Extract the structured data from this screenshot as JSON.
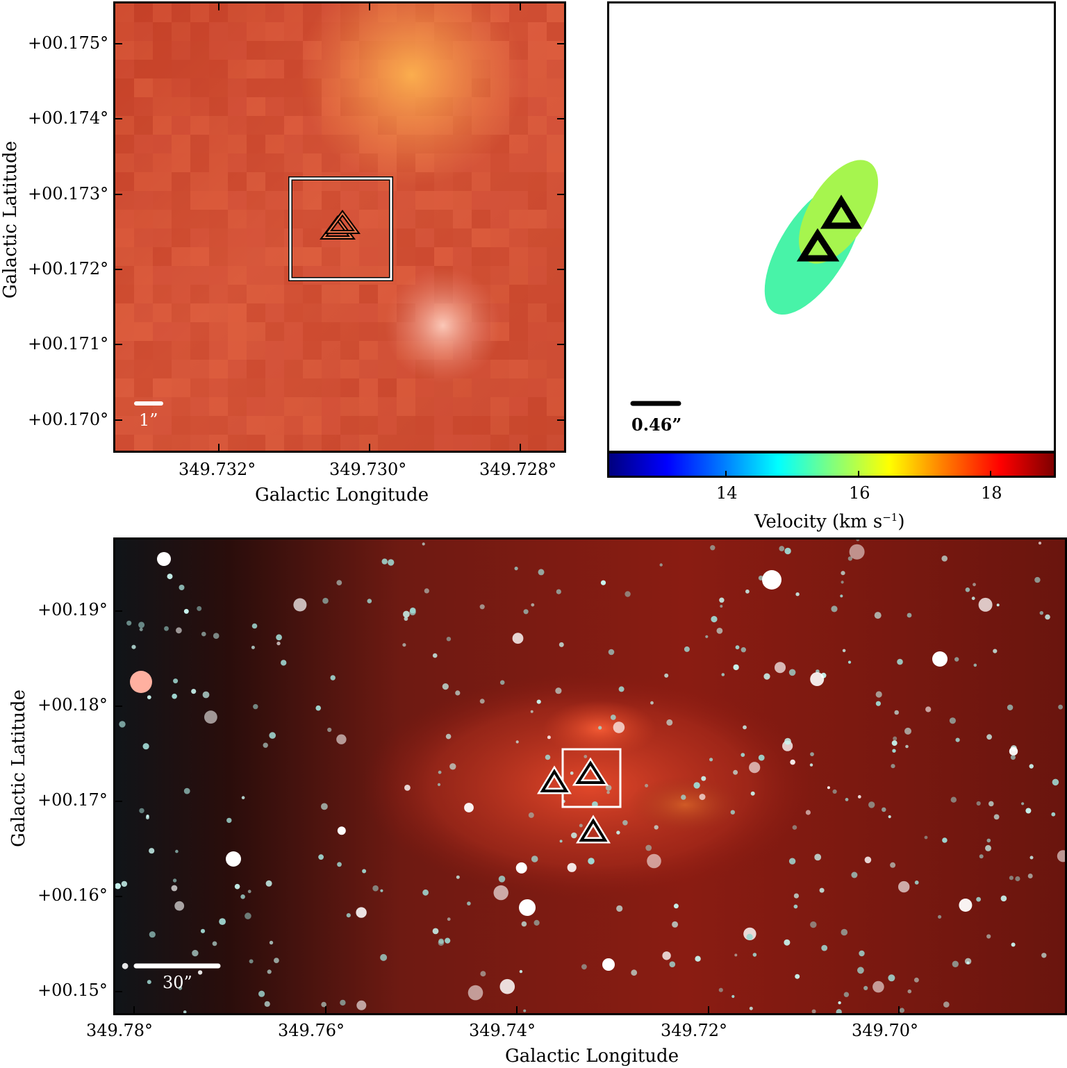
{
  "panels": {
    "top_left": {
      "y_ticks": [
        "+00.175°",
        "+00.174°",
        "+00.173°",
        "+00.172°",
        "+00.171°",
        "+00.170°"
      ],
      "x_ticks": [
        "349.732°",
        "349.730°",
        "349.728°"
      ],
      "xlabel": "Galactic Longitude",
      "ylabel": "Galactic Latitude",
      "scale_bar": "1”",
      "colors": {
        "base": "#d9583c",
        "highlight": "#f6a24a",
        "box": "#ffffff"
      }
    },
    "top_right": {
      "scale_bar": "0.46”",
      "colorbar": {
        "ticks": [
          "14",
          "16",
          "18"
        ],
        "label": "Velocity (km s",
        "label_sup": "−1",
        "label_end": ")",
        "range": [
          12.4,
          19.0
        ]
      },
      "ellipses": [
        {
          "velocity": 15.0,
          "color": "#48f3a8"
        },
        {
          "velocity": 15.7,
          "color": "#a6f54e"
        }
      ]
    },
    "bottom": {
      "y_ticks": [
        "+00.19°",
        "+00.18°",
        "+00.17°",
        "+00.16°",
        "+00.15°"
      ],
      "x_ticks": [
        "349.78°",
        "349.76°",
        "349.74°",
        "349.72°",
        "349.70°"
      ],
      "xlabel": "Galactic Longitude",
      "ylabel": "Galactic Latitude",
      "scale_bar": "30”",
      "colors": {
        "dark": "#1a0808",
        "red": "#8b1a12",
        "glow": "#e0452a",
        "star": "#c8f4ee"
      }
    }
  }
}
